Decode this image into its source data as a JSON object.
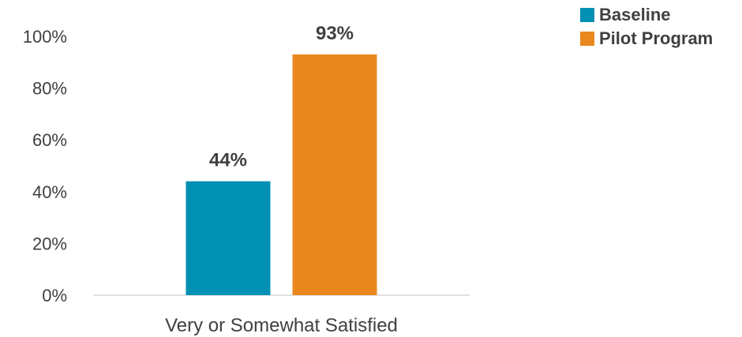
{
  "chart_data": {
    "type": "bar",
    "categories": [
      "Very or Somewhat Satisfied"
    ],
    "series": [
      {
        "name": "Baseline",
        "values": [
          44
        ],
        "color": "#0090b4",
        "label": "44%"
      },
      {
        "name": "Pilot Program",
        "values": [
          93
        ],
        "color": "#e8881e",
        "label": "93%"
      }
    ],
    "ylim": [
      0,
      100
    ],
    "yticks": [
      "0%",
      "20%",
      "40%",
      "60%",
      "80%",
      "100%"
    ],
    "ytick_values": [
      0,
      20,
      40,
      60,
      80,
      100
    ],
    "grid": false,
    "legend_position": "top-right"
  }
}
